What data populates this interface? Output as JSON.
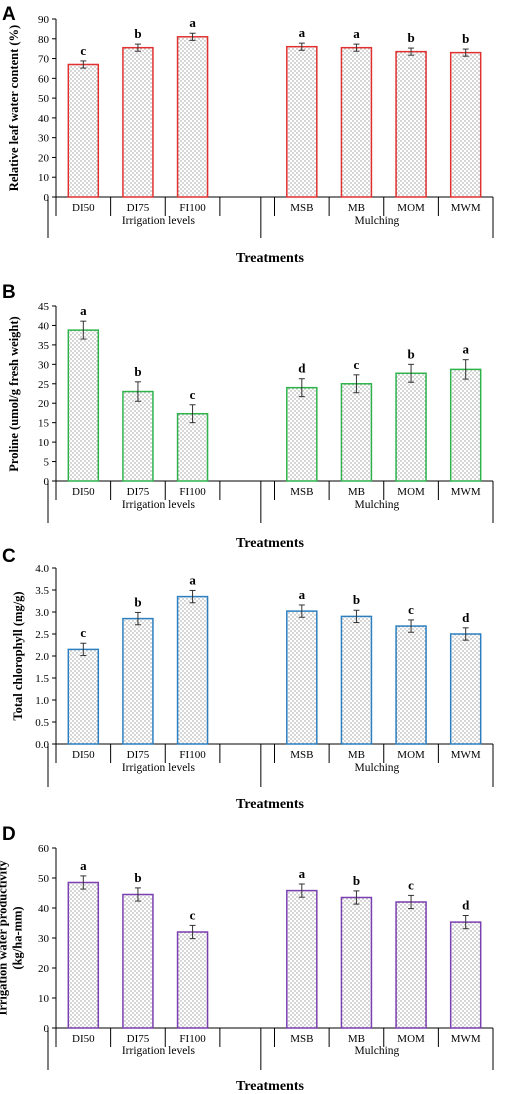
{
  "colors": {
    "panel_A": "#e03030",
    "panel_B": "#2db34a",
    "panel_C": "#2b7fc0",
    "panel_D": "#7a3fb0"
  },
  "chart_data": [
    {
      "panel": "A",
      "type": "bar",
      "ylabel": "Relative leaf water content (%)",
      "xlabel": "Treatments",
      "ylim": [
        0,
        90
      ],
      "yticks": [
        "0",
        "10",
        "20",
        "30",
        "40",
        "50",
        "60",
        "70",
        "80",
        "90"
      ],
      "categories": [
        "DI50",
        "DI75",
        "FI100",
        "",
        "MSB",
        "MB",
        "MOM",
        "MWM"
      ],
      "values": [
        67,
        75.5,
        81,
        null,
        76,
        75.5,
        73.5,
        73
      ],
      "errors": [
        1.8,
        1.8,
        1.8,
        null,
        1.8,
        1.8,
        1.8,
        1.8
      ],
      "letters": [
        "c",
        "b",
        "a",
        "",
        "a",
        "a",
        "b",
        "b"
      ],
      "groups": [
        "Irrigation levels",
        "Mulching"
      ]
    },
    {
      "panel": "B",
      "type": "bar",
      "ylabel": "Proline (umol/g fresh weight)",
      "xlabel": "Treatments",
      "ylim": [
        0,
        45
      ],
      "yticks": [
        "0",
        "5",
        "10",
        "15",
        "20",
        "25",
        "30",
        "35",
        "40",
        "45"
      ],
      "categories": [
        "DI50",
        "DI75",
        "FI100",
        "",
        "MSB",
        "MB",
        "MOM",
        "MWM"
      ],
      "values": [
        38.8,
        23,
        17.3,
        null,
        24,
        25,
        27.7,
        28.7
      ],
      "errors": [
        2.3,
        2.5,
        2.3,
        null,
        2.3,
        2.3,
        2.3,
        2.5
      ],
      "letters": [
        "a",
        "b",
        "c",
        "",
        "d",
        "c",
        "b",
        "a"
      ],
      "groups": [
        "Irrigation levels",
        "Mulching"
      ]
    },
    {
      "panel": "C",
      "type": "bar",
      "ylabel": "Total chlorophyll (mg/g)",
      "xlabel": "Treatments",
      "ylim": [
        0,
        4
      ],
      "yticks": [
        "0.0",
        "0.5",
        "1.0",
        "1.5",
        "2.0",
        "2.5",
        "3.0",
        "3.5",
        "4.0"
      ],
      "categories": [
        "DI50",
        "DI75",
        "FI100",
        "",
        "MSB",
        "MB",
        "MOM",
        "MWM"
      ],
      "values": [
        2.15,
        2.85,
        3.35,
        null,
        3.02,
        2.9,
        2.68,
        2.5
      ],
      "errors": [
        0.14,
        0.14,
        0.14,
        null,
        0.14,
        0.14,
        0.14,
        0.14
      ],
      "letters": [
        "c",
        "b",
        "a",
        "",
        "a",
        "b",
        "c",
        "d"
      ],
      "groups": [
        "Irrigation levels",
        "Mulching"
      ]
    },
    {
      "panel": "D",
      "type": "bar",
      "ylabel": "Irrigation water productivity (kg/ha-mm)",
      "ylabel_lines": [
        "Irrigation water productivity",
        "(kg/ha-mm)"
      ],
      "xlabel": "Treatments",
      "ylim": [
        0,
        60
      ],
      "yticks": [
        "0",
        "10",
        "20",
        "30",
        "40",
        "50",
        "60"
      ],
      "categories": [
        "DI50",
        "DI75",
        "FI100",
        "",
        "MSB",
        "MB",
        "MOM",
        "MWM"
      ],
      "values": [
        48.5,
        44.5,
        32,
        null,
        45.8,
        43.5,
        42,
        35.3
      ],
      "errors": [
        2.2,
        2.2,
        2.2,
        null,
        2.2,
        2.2,
        2.2,
        2.2
      ],
      "letters": [
        "a",
        "b",
        "c",
        "",
        "a",
        "b",
        "c",
        "d"
      ],
      "groups": [
        "Irrigation levels",
        "Mulching"
      ]
    }
  ]
}
